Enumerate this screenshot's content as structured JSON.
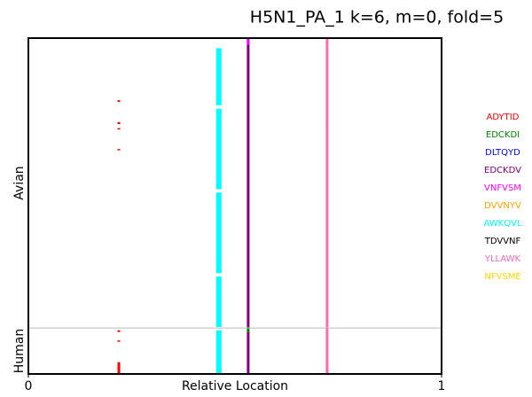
{
  "chart_data": {
    "type": "raster",
    "title": "H5N1_PA_1 k=6, m=0, fold=5",
    "x_label": "Relative Location",
    "xlim": [
      0,
      1
    ],
    "xticks": [
      0,
      1
    ],
    "ylim": [
      0,
      1
    ],
    "y_groups": [
      "Avian",
      "Human"
    ],
    "group_boundary": 0.863,
    "series": [
      {
        "name": "ADYTID",
        "color": "#ff0000",
        "x": 0.219,
        "spans": [
          [
            0.185,
            0.19
          ],
          [
            0.25,
            0.256
          ],
          [
            0.268,
            0.272
          ],
          [
            0.33,
            0.334
          ],
          [
            0.87,
            0.875
          ],
          [
            0.9,
            0.904
          ],
          [
            0.965,
            1.0
          ]
        ]
      },
      {
        "name": "EDCKDI",
        "color": "#008000",
        "x": 0.532,
        "spans": [
          [
            0.86,
            0.875
          ]
        ]
      },
      {
        "name": "DLTQYD",
        "color": "#0000ff",
        "x": 0.461,
        "spans": [
          [
            0.5,
            0.51
          ],
          [
            0.88,
            0.89
          ]
        ]
      },
      {
        "name": "EDCKDV",
        "color": "#800080",
        "x": 0.532,
        "spans": [
          [
            0.0,
            0.86
          ],
          [
            0.875,
            1.0
          ]
        ]
      },
      {
        "name": "VNFVSM",
        "color": "#ff00ff",
        "x": 0.532,
        "spans": [
          [
            0.0,
            0.02
          ]
        ]
      },
      {
        "name": "DVVNYV",
        "color": "#ffa500",
        "x": 0.723,
        "spans": [
          [
            0.25,
            0.26
          ],
          [
            0.96,
            1.0
          ]
        ]
      },
      {
        "name": "AWKQVL",
        "color": "#00ffff",
        "x": 0.461,
        "spans": [
          [
            0.03,
            0.2
          ],
          [
            0.21,
            0.45
          ],
          [
            0.46,
            0.7
          ],
          [
            0.71,
            0.86
          ],
          [
            0.87,
            1.0
          ]
        ]
      },
      {
        "name": "TDVVNF",
        "color": "#000000",
        "x": 0.5,
        "spans": []
      },
      {
        "name": "YLLAWK",
        "color": "#ff69b4",
        "x": 0.723,
        "spans": [
          [
            0.0,
            1.0
          ]
        ]
      },
      {
        "name": "NFVSME",
        "color": "#ffd700",
        "x": 0.5,
        "spans": []
      }
    ]
  }
}
